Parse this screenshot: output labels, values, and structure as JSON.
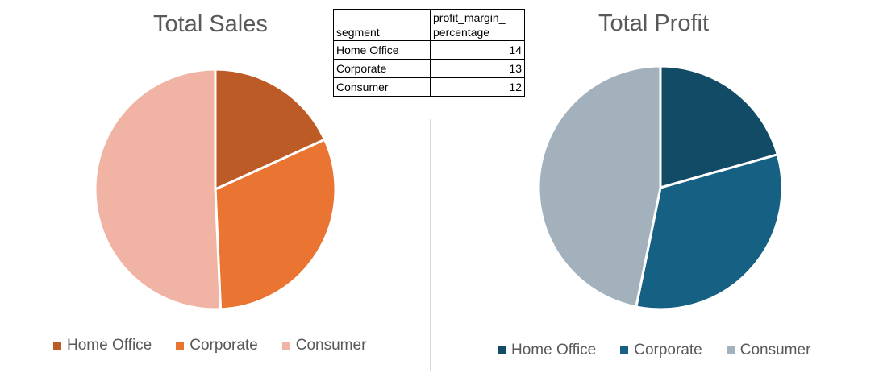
{
  "chart_data": [
    {
      "type": "pie",
      "title": "Total Sales",
      "categories": [
        "Home Office",
        "Corporate",
        "Consumer"
      ],
      "values": [
        18.2,
        31.1,
        50.7
      ],
      "colors": [
        "#bd5b26",
        "#ea7432",
        "#f1b4a4"
      ],
      "legend": "bottom"
    },
    {
      "type": "pie",
      "title": "Total Profit",
      "categories": [
        "Home Office",
        "Corporate",
        "Consumer"
      ],
      "values": [
        20.6,
        32.6,
        46.8
      ],
      "colors": [
        "#114b66",
        "#166183",
        "#a2b1bc"
      ],
      "legend": "bottom"
    }
  ],
  "table": {
    "headers": [
      "segment",
      "profit_margin_\npercentage"
    ],
    "header_line1": "profit_margin_",
    "header_line2": "percentage",
    "rows": [
      {
        "segment": "Home Office",
        "value": "14"
      },
      {
        "segment": "Corporate",
        "value": "13"
      },
      {
        "segment": "Consumer",
        "value": "12"
      }
    ]
  }
}
